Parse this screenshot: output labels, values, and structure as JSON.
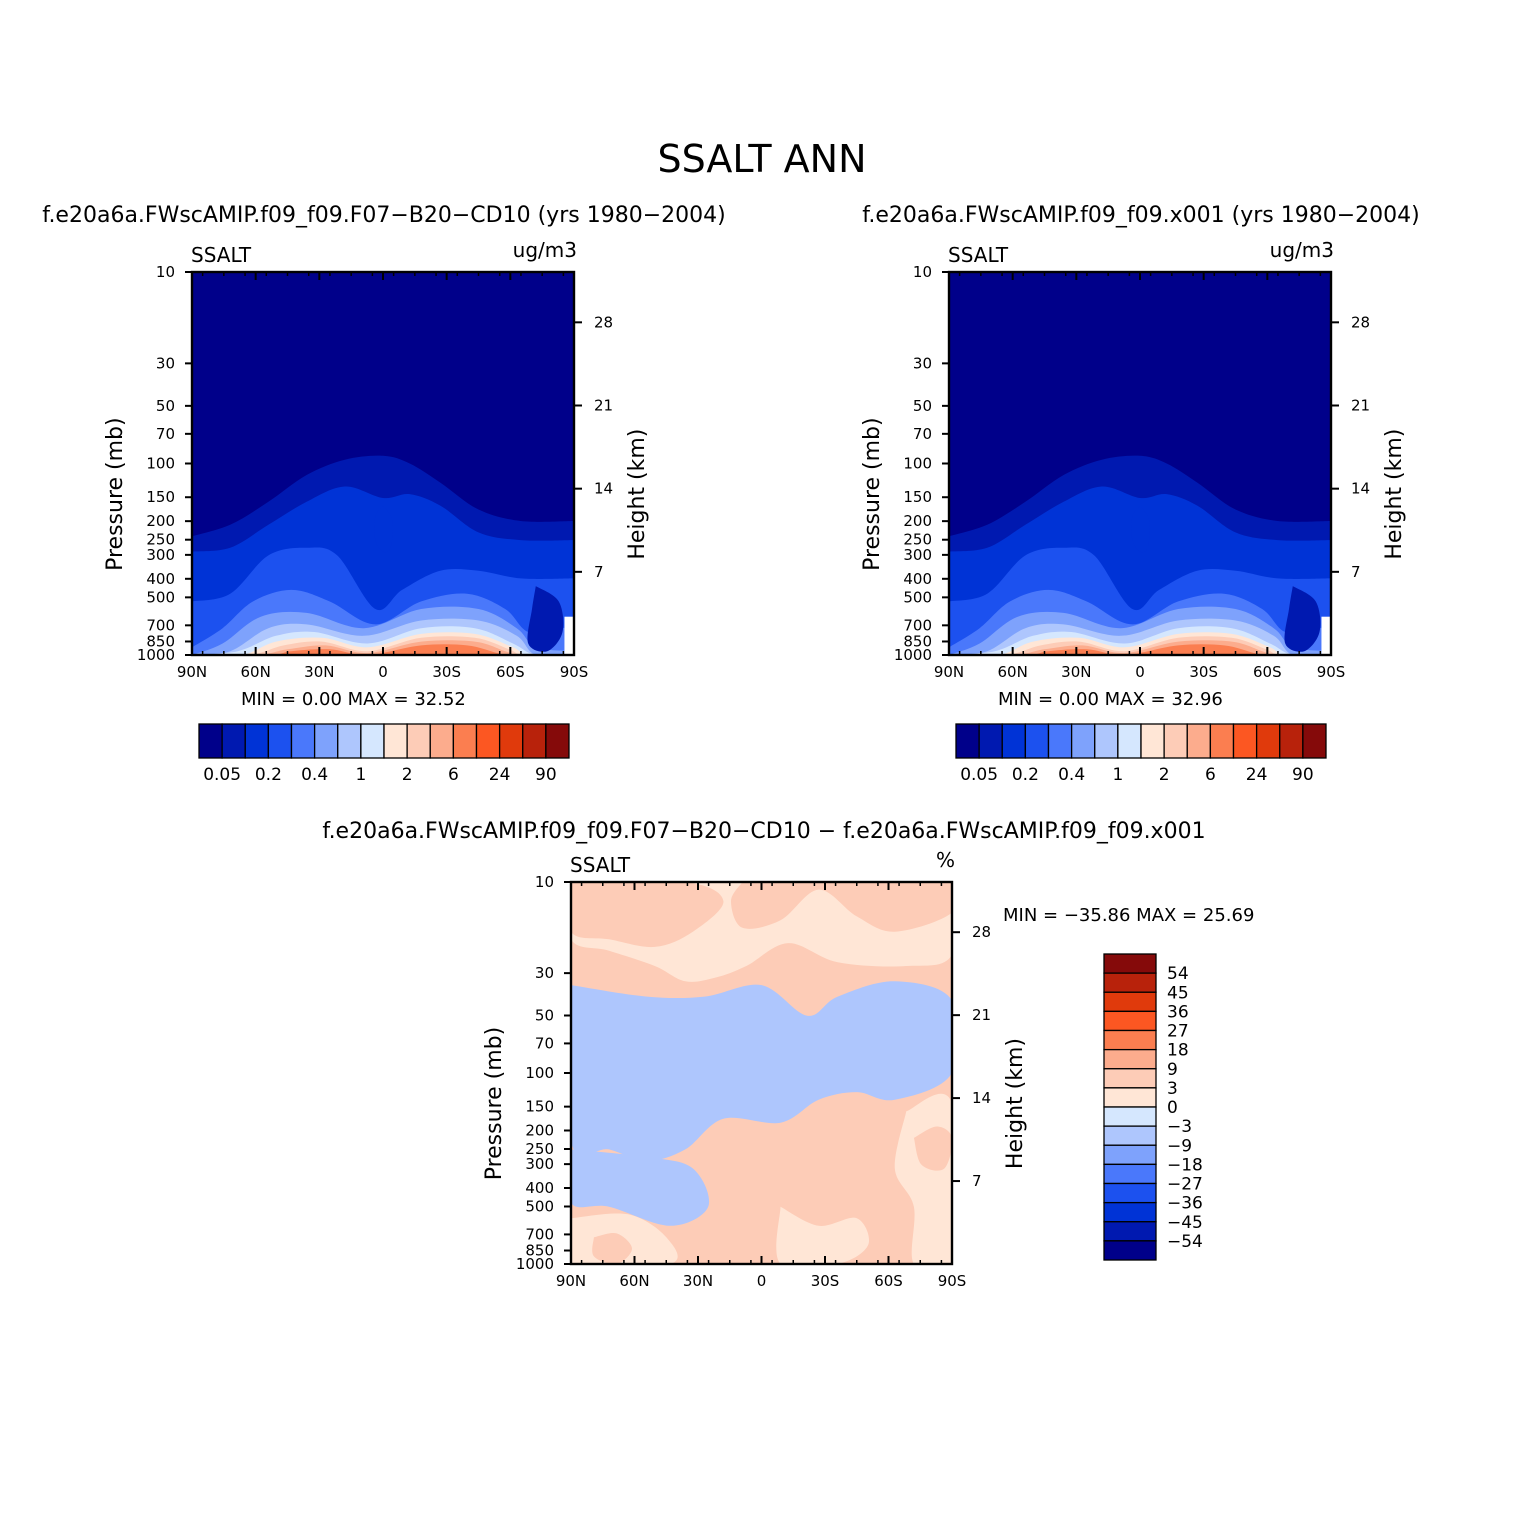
{
  "figure": {
    "title": "SSALT ANN"
  },
  "chart_data": [
    {
      "type": "heatmap",
      "id": "panel-left",
      "title": "f.e20a6a.FWscAMIP.f09_f09.F07-B20-CD10 (yrs 1980-2004)",
      "variable": "SSALT",
      "units": "ug/m3",
      "ylabel": "Pressure (mb)",
      "y2label": "Height (km)",
      "xlabel": "",
      "x_ticks": [
        "90N",
        "60N",
        "30N",
        "0",
        "30S",
        "60S",
        "90S"
      ],
      "y_ticks": [
        10,
        30,
        50,
        70,
        100,
        150,
        200,
        250,
        300,
        400,
        500,
        700,
        850,
        1000
      ],
      "y2_ticks": [
        28,
        21,
        14,
        7
      ],
      "ylim": [
        1000,
        10
      ],
      "min_label": "MIN =",
      "min_value": "0.00",
      "max_label": "MAX =",
      "max_value": "32.52",
      "colorbar": {
        "orientation": "horizontal",
        "colors": [
          "#00008a",
          "#0019b0",
          "#0033d6",
          "#1c51ef",
          "#4a78fb",
          "#7ea2fc",
          "#aec6fd",
          "#d5e7fe",
          "#ffe6d6",
          "#fdccb7",
          "#fcac8d",
          "#fb7e50",
          "#fc5722",
          "#e03a0c",
          "#b8220b",
          "#850a0a"
        ],
        "labels": [
          "0.05",
          "0.2",
          "0.4",
          "1",
          "2",
          "6",
          "24",
          "90"
        ]
      }
    },
    {
      "type": "heatmap",
      "id": "panel-right",
      "title": "f.e20a6a.FWscAMIP.f09_f09.x001 (yrs 1980-2004)",
      "variable": "SSALT",
      "units": "ug/m3",
      "ylabel": "Pressure (mb)",
      "y2label": "Height (km)",
      "xlabel": "",
      "x_ticks": [
        "90N",
        "60N",
        "30N",
        "0",
        "30S",
        "60S",
        "90S"
      ],
      "y_ticks": [
        10,
        30,
        50,
        70,
        100,
        150,
        200,
        250,
        300,
        400,
        500,
        700,
        850,
        1000
      ],
      "y2_ticks": [
        28,
        21,
        14,
        7
      ],
      "ylim": [
        1000,
        10
      ],
      "min_label": "MIN =",
      "min_value": "0.00",
      "max_label": "MAX =",
      "max_value": "32.96",
      "colorbar": {
        "orientation": "horizontal",
        "colors": [
          "#00008a",
          "#0019b0",
          "#0033d6",
          "#1c51ef",
          "#4a78fb",
          "#7ea2fc",
          "#aec6fd",
          "#d5e7fe",
          "#ffe6d6",
          "#fdccb7",
          "#fcac8d",
          "#fb7e50",
          "#fc5722",
          "#e03a0c",
          "#b8220b",
          "#850a0a"
        ],
        "labels": [
          "0.05",
          "0.2",
          "0.4",
          "1",
          "2",
          "6",
          "24",
          "90"
        ]
      }
    },
    {
      "type": "heatmap",
      "id": "panel-diff",
      "title": "f.e20a6a.FWscAMIP.f09_f09.F07-B20-CD10 - f.e20a6a.FWscAMIP.f09_f09.x001",
      "variable": "SSALT",
      "units": "%",
      "ylabel": "Pressure (mb)",
      "y2label": "Height (km)",
      "xlabel": "",
      "x_ticks": [
        "90N",
        "60N",
        "30N",
        "0",
        "30S",
        "60S",
        "90S"
      ],
      "y_ticks": [
        10,
        30,
        50,
        70,
        100,
        150,
        200,
        250,
        300,
        400,
        500,
        700,
        850,
        1000
      ],
      "y2_ticks": [
        28,
        21,
        14,
        7
      ],
      "ylim": [
        1000,
        10
      ],
      "min_label": "MIN =",
      "min_value": "-35.86",
      "max_label": "MAX =",
      "max_value": "25.69",
      "colorbar": {
        "orientation": "vertical",
        "colors_top_to_bottom": [
          "#850a0a",
          "#b8220b",
          "#e03a0c",
          "#fc5722",
          "#fb7e50",
          "#fcac8d",
          "#fdccb7",
          "#ffe6d6",
          "#d5e7fe",
          "#aec6fd",
          "#7ea2fc",
          "#4a78fb",
          "#1c51ef",
          "#0033d6",
          "#0019b0",
          "#00008a"
        ],
        "labels_top_to_bottom": [
          "54",
          "45",
          "36",
          "27",
          "18",
          "9",
          "3",
          "0",
          "-3",
          "-9",
          "-18",
          "-27",
          "-36",
          "-45",
          "-54"
        ]
      }
    }
  ]
}
